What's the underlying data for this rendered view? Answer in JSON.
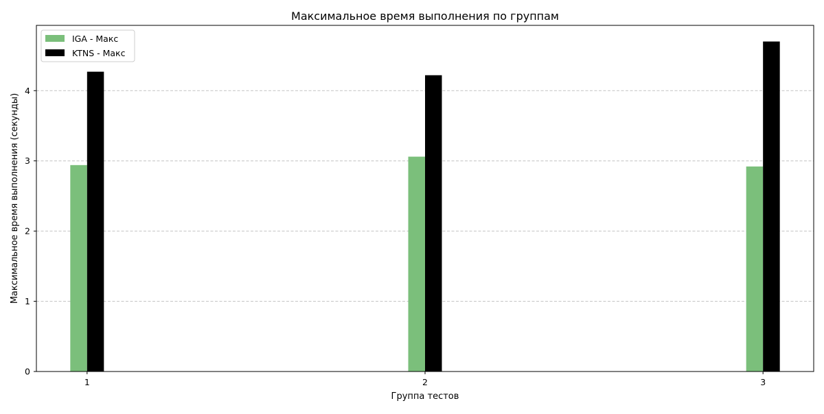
{
  "chart_data": {
    "type": "bar",
    "title": "Максимальное время выполнения по группам",
    "xlabel": "Группа тестов",
    "ylabel": "Максимальное время выполнения (секунды)",
    "categories": [
      "1",
      "2",
      "3"
    ],
    "x": [
      1,
      2,
      3
    ],
    "xlim": [
      0.85,
      3.15
    ],
    "ylim": [
      0,
      4.93
    ],
    "yticks": [
      0,
      1,
      2,
      3,
      4
    ],
    "grid": "y-dashed",
    "legend_position": "top-left",
    "series": [
      {
        "name": "IGA - Макс",
        "color": "#7bbf7b",
        "values": [
          2.94,
          3.06,
          2.92
        ]
      },
      {
        "name": "KTNS - Макс",
        "color": "#000000",
        "values": [
          4.27,
          4.22,
          4.7
        ]
      }
    ]
  }
}
